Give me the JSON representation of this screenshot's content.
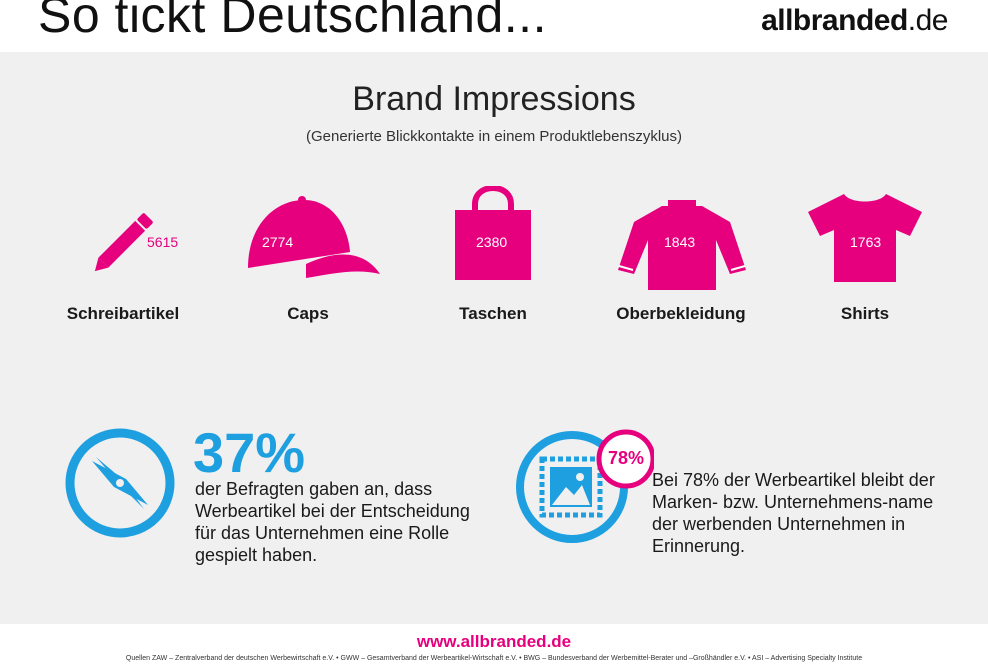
{
  "header": {
    "title": "So tickt Deutschland...",
    "brand_bold": "allbranded",
    "brand_rest": ".de"
  },
  "main": {
    "title": "Brand Impressions",
    "subtitle": "(Generierte Blickkontakte in einem Produktlebenszyklus)"
  },
  "items": [
    {
      "label": "Schreibartikel",
      "value": "5615",
      "icon": "pen-icon"
    },
    {
      "label": "Caps",
      "value": "2774",
      "icon": "cap-icon"
    },
    {
      "label": "Taschen",
      "value": "2380",
      "icon": "bag-icon"
    },
    {
      "label": "Oberbekleidung",
      "value": "1843",
      "icon": "sweater-icon"
    },
    {
      "label": "Shirts",
      "value": "1763",
      "icon": "shirt-icon"
    }
  ],
  "stat1": {
    "value": "37%",
    "text": "der Befragten gaben an, dass Werbeartikel bei der Entscheidung für das Unternehmen eine Rolle gespielt haben.",
    "icon": "compass-icon"
  },
  "stat2": {
    "badge": "78%",
    "text": "Bei 78% der Werbeartikel bleibt der Marken- bzw. Unternehmens-name der werbenden Unternehmen in Erinnerung.",
    "icon": "stamp-icon"
  },
  "footer": {
    "url": "www.allbranded.de",
    "sources": "Quellen ZAW – Zentralverband der deutschen Werbewirtschaft e.V.  •  GWW – Gesamtverband der Werbeartikel-Wirtschaft e.V.  •  BWG – Bundesverband der Werbemittel-Berater und –Großhändler e.V.  •  ASI – Advertising Specialty Institute"
  },
  "colors": {
    "magenta": "#e6007e",
    "blue": "#1e9fe0",
    "panel": "#f0f0f0"
  }
}
